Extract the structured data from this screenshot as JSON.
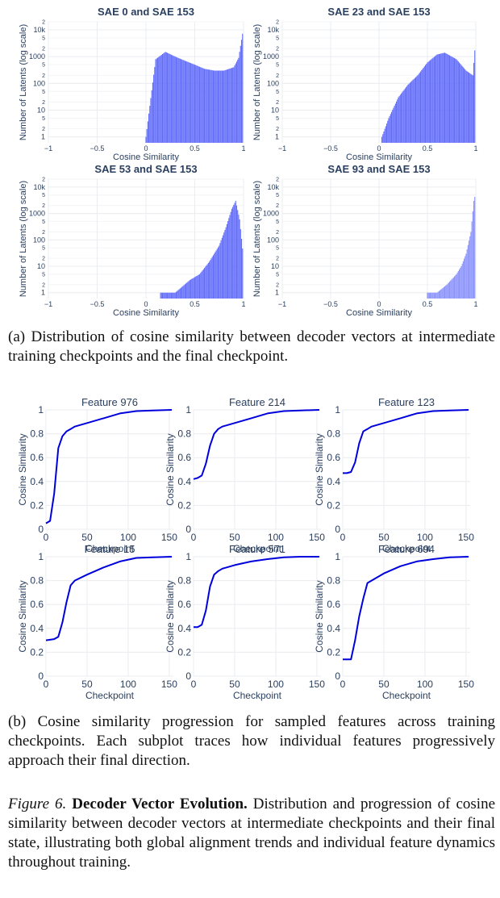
{
  "chart_data": [
    {
      "type": "bar",
      "group": "a",
      "title": "SAE 0 and SAE 153",
      "xlabel": "Cosine Similarity",
      "ylabel": "Number of Latents (log scale)",
      "yscale": "log",
      "xlim": [
        -1,
        1
      ],
      "ylim": [
        0.6,
        20000
      ],
      "x_ticks": [
        "−1",
        "−0.5",
        "0",
        "0.5",
        "1"
      ],
      "y_ticks": [
        "1",
        "10",
        "100",
        "1000",
        "10k"
      ],
      "color": "#636efa",
      "x": [
        0.0,
        0.1,
        0.2,
        0.3,
        0.4,
        0.5,
        0.6,
        0.7,
        0.8,
        0.9,
        0.95,
        1.0
      ],
      "values": [
        1,
        800,
        1500,
        1000,
        700,
        500,
        350,
        300,
        300,
        400,
        900,
        12000
      ]
    },
    {
      "type": "bar",
      "group": "a",
      "title": "SAE 23 and SAE 153",
      "xlabel": "Cosine Similarity",
      "ylabel": "Number of Latents (log scale)",
      "yscale": "log",
      "xlim": [
        -1,
        1
      ],
      "ylim": [
        0.6,
        20000
      ],
      "x_ticks": [
        "−1",
        "−0.5",
        "0",
        "0.5",
        "1"
      ],
      "y_ticks": [
        "1",
        "10",
        "100",
        "1000",
        "10k"
      ],
      "color": "#636efa",
      "x": [
        0.03,
        0.1,
        0.2,
        0.3,
        0.4,
        0.5,
        0.6,
        0.68,
        0.8,
        0.9,
        0.97,
        1.0
      ],
      "values": [
        1,
        5,
        30,
        90,
        200,
        600,
        1200,
        1400,
        800,
        300,
        200,
        5000
      ]
    },
    {
      "type": "bar",
      "group": "a",
      "title": "SAE 53 and SAE 153",
      "xlabel": "Cosine Similarity",
      "ylabel": "Number of Latents (log scale)",
      "yscale": "log",
      "xlim": [
        -1,
        1
      ],
      "ylim": [
        0.6,
        20000
      ],
      "x_ticks": [
        "−1",
        "−0.5",
        "0",
        "0.5",
        "1"
      ],
      "y_ticks": [
        "1",
        "10",
        "100",
        "1000",
        "10k"
      ],
      "color": "#636efa",
      "x": [
        0.15,
        0.3,
        0.45,
        0.55,
        0.65,
        0.75,
        0.82,
        0.88,
        0.92,
        0.96,
        1.0
      ],
      "values": [
        1,
        1,
        3,
        5,
        15,
        60,
        300,
        1500,
        3000,
        600,
        20
      ]
    },
    {
      "type": "bar",
      "group": "a",
      "title": "SAE 93 and SAE 153",
      "xlabel": "Cosine Similarity",
      "ylabel": "Number of Latents (log scale)",
      "yscale": "log",
      "xlim": [
        -1,
        1
      ],
      "ylim": [
        0.6,
        20000
      ],
      "x_ticks": [
        "−1",
        "−0.5",
        "0",
        "0.5",
        "1"
      ],
      "y_ticks": [
        "1",
        "10",
        "100",
        "1000",
        "10k"
      ],
      "color": "#8c94fb",
      "x": [
        0.5,
        0.6,
        0.7,
        0.8,
        0.85,
        0.9,
        0.95,
        0.98,
        1.0
      ],
      "values": [
        1,
        1,
        2,
        5,
        10,
        30,
        200,
        3000,
        6000
      ]
    },
    {
      "type": "line",
      "group": "b",
      "title": "Feature 976",
      "xlabel": "Checkpoint",
      "ylabel": "Cosine Similarity",
      "xlim": [
        0,
        155
      ],
      "ylim": [
        0,
        1
      ],
      "x_ticks": [
        "0",
        "50",
        "100",
        "150"
      ],
      "y_ticks": [
        "0",
        "0.2",
        "0.4",
        "0.6",
        "0.8",
        "1"
      ],
      "color": "#0000dd",
      "x": [
        0,
        5,
        10,
        15,
        20,
        25,
        30,
        35,
        50,
        70,
        90,
        110,
        130,
        153
      ],
      "values": [
        0.05,
        0.07,
        0.3,
        0.68,
        0.78,
        0.82,
        0.84,
        0.86,
        0.89,
        0.93,
        0.97,
        0.99,
        0.995,
        1.0
      ]
    },
    {
      "type": "line",
      "group": "b",
      "title": "Feature 214",
      "xlabel": "Checkpoint",
      "ylabel": "Cosine Similarity",
      "xlim": [
        0,
        155
      ],
      "ylim": [
        0,
        1
      ],
      "x_ticks": [
        "0",
        "50",
        "100",
        "150"
      ],
      "y_ticks": [
        "0",
        "0.2",
        "0.4",
        "0.6",
        "0.8",
        "1"
      ],
      "color": "#0000dd",
      "x": [
        0,
        5,
        10,
        15,
        20,
        25,
        30,
        35,
        50,
        70,
        90,
        110,
        130,
        153
      ],
      "values": [
        0.42,
        0.43,
        0.45,
        0.55,
        0.7,
        0.8,
        0.84,
        0.86,
        0.89,
        0.93,
        0.97,
        0.99,
        0.995,
        1.0
      ]
    },
    {
      "type": "line",
      "group": "b",
      "title": "Feature 123",
      "xlabel": "Checkpoint",
      "ylabel": "Cosine Similarity",
      "xlim": [
        0,
        155
      ],
      "ylim": [
        0,
        1
      ],
      "x_ticks": [
        "0",
        "50",
        "100",
        "150"
      ],
      "y_ticks": [
        "0",
        "0.2",
        "0.4",
        "0.6",
        "0.8",
        "1"
      ],
      "color": "#0000dd",
      "x": [
        0,
        5,
        10,
        15,
        20,
        25,
        30,
        35,
        50,
        70,
        90,
        110,
        130,
        153
      ],
      "values": [
        0.47,
        0.47,
        0.48,
        0.56,
        0.72,
        0.82,
        0.84,
        0.86,
        0.89,
        0.93,
        0.97,
        0.99,
        0.995,
        1.0
      ]
    },
    {
      "type": "line",
      "group": "b",
      "title": "Feature 15",
      "xlabel": "Checkpoint",
      "ylabel": "Cosine Similarity",
      "xlim": [
        0,
        155
      ],
      "ylim": [
        0,
        1
      ],
      "x_ticks": [
        "0",
        "50",
        "100",
        "150"
      ],
      "y_ticks": [
        "0",
        "0.2",
        "0.4",
        "0.6",
        "0.8",
        "1"
      ],
      "color": "#0000dd",
      "x": [
        0,
        10,
        15,
        20,
        25,
        30,
        35,
        50,
        70,
        90,
        110,
        130,
        153
      ],
      "values": [
        0.3,
        0.31,
        0.33,
        0.45,
        0.62,
        0.76,
        0.8,
        0.85,
        0.91,
        0.96,
        0.99,
        0.995,
        1.0
      ]
    },
    {
      "type": "line",
      "group": "b",
      "title": "Feature 571",
      "xlabel": "Checkpoint",
      "ylabel": "Cosine Similarity",
      "xlim": [
        0,
        155
      ],
      "ylim": [
        0,
        1
      ],
      "x_ticks": [
        "0",
        "50",
        "100",
        "150"
      ],
      "y_ticks": [
        "0",
        "0.2",
        "0.4",
        "0.6",
        "0.8",
        "1"
      ],
      "color": "#0000dd",
      "x": [
        0,
        5,
        10,
        15,
        20,
        25,
        30,
        35,
        50,
        70,
        90,
        110,
        130,
        153
      ],
      "values": [
        0.41,
        0.41,
        0.43,
        0.55,
        0.75,
        0.85,
        0.88,
        0.9,
        0.93,
        0.96,
        0.98,
        0.995,
        1.0,
        1.0
      ]
    },
    {
      "type": "line",
      "group": "b",
      "title": "Feature 694",
      "xlabel": "Checkpoint",
      "ylabel": "Cosine Similarity",
      "xlim": [
        0,
        155
      ],
      "ylim": [
        0,
        1
      ],
      "x_ticks": [
        "0",
        "50",
        "100",
        "150"
      ],
      "y_ticks": [
        "0",
        "0.2",
        "0.4",
        "0.6",
        "0.8",
        "1"
      ],
      "color": "#0000dd",
      "x": [
        0,
        10,
        15,
        20,
        25,
        30,
        35,
        50,
        70,
        90,
        110,
        130,
        153
      ],
      "values": [
        0.14,
        0.14,
        0.3,
        0.5,
        0.65,
        0.78,
        0.8,
        0.86,
        0.92,
        0.96,
        0.98,
        0.995,
        1.0
      ]
    }
  ],
  "captions": {
    "a": "(a) Distribution of cosine similarity between decoder vectors at intermediate training checkpoints and the final checkpoint.",
    "b": "(b) Cosine similarity progression for sampled features across training checkpoints. Each subplot traces how individual features progressively approach their final direction.",
    "figure_number": "Figure 6.",
    "figure_title": "Decoder Vector Evolution.",
    "figure_text": "Distribution and progression of cosine similarity between decoder vectors at intermediate checkpoints and their final state, illustrating both global alignment trends and individual feature dynamics throughout training."
  }
}
